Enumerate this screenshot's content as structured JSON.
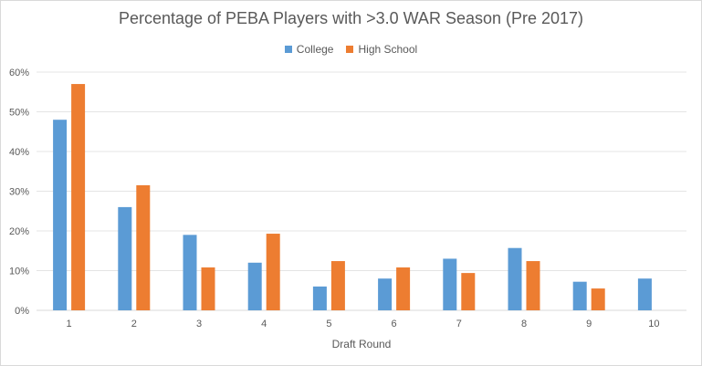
{
  "chart_data": {
    "type": "bar",
    "title": "Percentage of PEBA Players with >3.0 WAR Season (Pre 2017)",
    "xlabel": "Draft Round",
    "ylabel": "",
    "categories": [
      "1",
      "2",
      "3",
      "4",
      "5",
      "6",
      "7",
      "8",
      "9",
      "10"
    ],
    "ylim": [
      0,
      60
    ],
    "yticks": [
      "0%",
      "10%",
      "20%",
      "30%",
      "40%",
      "50%",
      "60%"
    ],
    "grid": true,
    "legend_position": "top",
    "series": [
      {
        "name": "College",
        "color": "#5b9bd5",
        "values": [
          48,
          26,
          19,
          12,
          6,
          8,
          13,
          15.7,
          7.2,
          8
        ]
      },
      {
        "name": "High School",
        "color": "#ed7d31",
        "values": [
          57,
          31.5,
          10.8,
          19.3,
          12.4,
          10.8,
          9.4,
          12.4,
          5.5,
          null
        ]
      }
    ]
  }
}
